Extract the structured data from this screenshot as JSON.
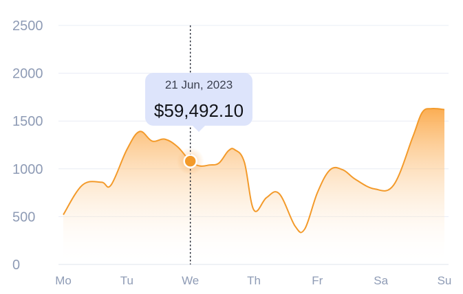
{
  "chart_data": {
    "type": "area",
    "categories": [
      "Mo",
      "Tu",
      "We",
      "Th",
      "Fr",
      "Sa",
      "Su"
    ],
    "y_ticks": [
      "0",
      "500",
      "1000",
      "1500",
      "2000",
      "2500"
    ],
    "ylim": [
      0,
      2500
    ],
    "grid": true,
    "line_color": "#f39a2a",
    "fill_color": "#fbb65c",
    "series": [
      {
        "x": [
          0,
          0.3,
          0.6,
          0.75,
          1.0,
          1.2,
          1.4,
          1.6,
          1.8,
          2.0,
          2.15,
          2.3,
          2.45,
          2.6,
          2.7,
          2.85,
          3.0,
          3.2,
          3.4,
          3.65,
          3.8,
          4.0,
          4.2,
          4.4,
          4.6,
          4.9,
          5.2,
          5.5,
          5.65,
          5.8,
          6.0
        ],
        "values": [
          520,
          830,
          860,
          830,
          1200,
          1390,
          1290,
          1310,
          1230,
          1080,
          1030,
          1040,
          1060,
          1190,
          1200,
          1070,
          570,
          700,
          740,
          400,
          370,
          750,
          990,
          990,
          890,
          790,
          830,
          1330,
          1590,
          1630,
          1620
        ]
      }
    ],
    "highlight": {
      "x": 2.0,
      "y": 1080,
      "date": "21 Jun, 2023",
      "value": "$59,492.10"
    }
  }
}
